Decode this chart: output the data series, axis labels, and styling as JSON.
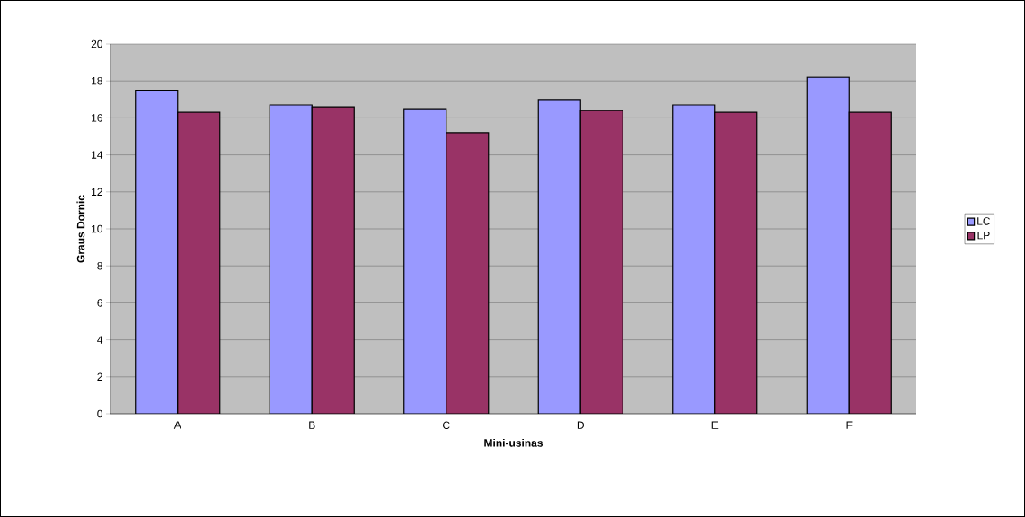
{
  "chart_data": {
    "type": "bar",
    "xlabel": "Mini-usinas",
    "ylabel": "Graus Dornic",
    "categories": [
      "A",
      "B",
      "C",
      "D",
      "E",
      "F"
    ],
    "series": [
      {
        "name": "LC",
        "color": "#9999ff",
        "values": [
          17.5,
          16.7,
          16.5,
          17.0,
          16.7,
          18.2
        ]
      },
      {
        "name": "LP",
        "color": "#993366",
        "values": [
          16.3,
          16.6,
          15.2,
          16.4,
          16.3,
          16.3
        ]
      }
    ],
    "ylim": [
      0,
      20
    ],
    "yticks": [
      0,
      2,
      4,
      6,
      8,
      10,
      12,
      14,
      16,
      18,
      20
    ],
    "grid": "y",
    "legend": "right"
  }
}
